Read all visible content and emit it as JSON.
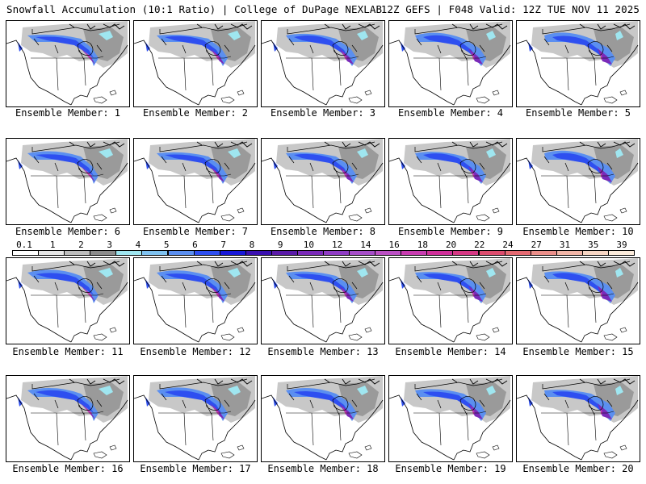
{
  "header": {
    "title": "Snowfall Accumulation (10:1 Ratio) | College of DuPage NEXLAB",
    "run_info": "12Z GEFS | F048 Valid: 12Z TUE NOV 11 2025"
  },
  "colorbar": {
    "labels": [
      "0.1",
      "1",
      "2",
      "3",
      "4",
      "5",
      "6",
      "7",
      "8",
      "9",
      "10",
      "12",
      "14",
      "16",
      "18",
      "20",
      "22",
      "24",
      "27",
      "31",
      "35",
      "39"
    ],
    "colors": [
      "#ffffff",
      "#e6e6e6",
      "#bdbdbd",
      "#8c8c8c",
      "#9fe6f0",
      "#7fc2f0",
      "#5b8ff0",
      "#2e4ff0",
      "#1818d8",
      "#3a10b0",
      "#5a1aa8",
      "#7a2ab8",
      "#8f3cc4",
      "#a64ec8",
      "#bb50c4",
      "#c83cb0",
      "#d0309a",
      "#d63884",
      "#dc4d6e",
      "#e46a72",
      "#eb8f8a",
      "#f2b6a8",
      "#f7d6c4",
      "#fcecdc"
    ]
  },
  "members": [
    {
      "caption": "Ensemble Member: 1"
    },
    {
      "caption": "Ensemble Member: 2"
    },
    {
      "caption": "Ensemble Member: 3"
    },
    {
      "caption": "Ensemble Member: 4"
    },
    {
      "caption": "Ensemble Member: 5"
    },
    {
      "caption": "Ensemble Member: 6"
    },
    {
      "caption": "Ensemble Member: 7"
    },
    {
      "caption": "Ensemble Member: 8"
    },
    {
      "caption": "Ensemble Member: 9"
    },
    {
      "caption": "Ensemble Member: 10"
    },
    {
      "caption": "Ensemble Member: 11"
    },
    {
      "caption": "Ensemble Member: 12"
    },
    {
      "caption": "Ensemble Member: 13"
    },
    {
      "caption": "Ensemble Member: 14"
    },
    {
      "caption": "Ensemble Member: 15"
    },
    {
      "caption": "Ensemble Member: 16"
    },
    {
      "caption": "Ensemble Member: 17"
    },
    {
      "caption": "Ensemble Member: 18"
    },
    {
      "caption": "Ensemble Member: 19"
    },
    {
      "caption": "Ensemble Member: 20"
    }
  ]
}
